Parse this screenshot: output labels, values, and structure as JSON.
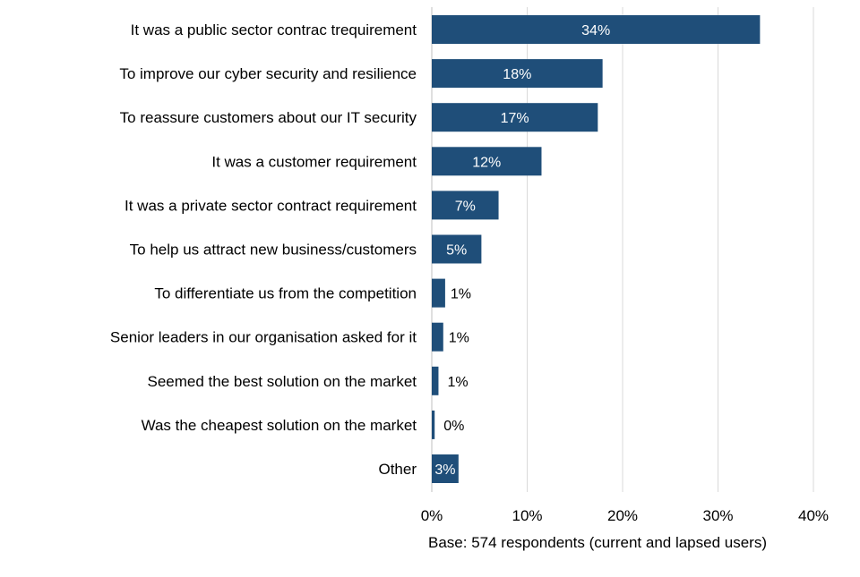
{
  "chart_data": {
    "type": "bar",
    "orientation": "horizontal",
    "categories": [
      "It was a public sector contrac trequirement",
      "To improve our cyber security and resilience",
      "To reassure customers about our IT security",
      "It was a customer requirement",
      "It was a private sector contract requirement",
      "To help us attract new business/customers",
      "To differentiate us from the competition",
      "Senior leaders in our organisation asked for it",
      "Seemed the best solution on the market",
      "Was the cheapest solution on the market",
      "Other"
    ],
    "values": [
      34.4,
      17.9,
      17.4,
      11.5,
      7.0,
      5.2,
      1.4,
      1.2,
      0.7,
      0.3,
      2.8
    ],
    "data_labels": [
      "34%",
      "18%",
      "17%",
      "12%",
      "7%",
      "5%",
      "1%",
      "1%",
      "1%",
      "0%",
      "3%"
    ],
    "xlim": [
      0,
      40
    ],
    "xticks": [
      0,
      10,
      20,
      30,
      40
    ],
    "xtick_labels": [
      "0%",
      "10%",
      "20%",
      "30%",
      "40%"
    ],
    "grid": true,
    "bar_color": "#1f4e79",
    "note": "Base: 574 respondents (current and lapsed users)"
  }
}
